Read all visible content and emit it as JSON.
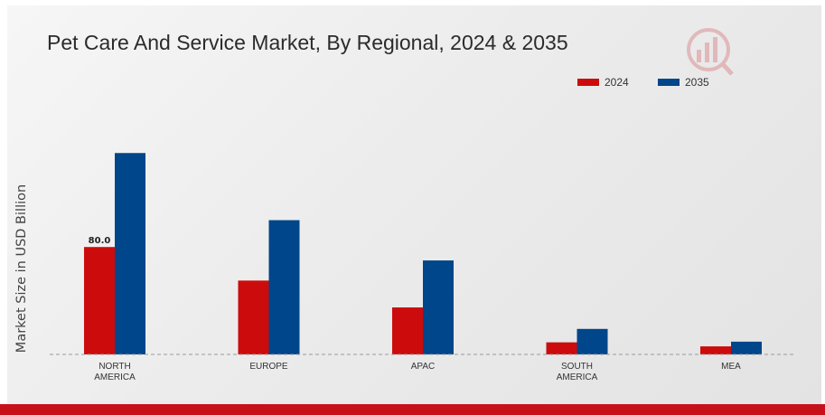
{
  "chart_data": {
    "type": "bar",
    "title": "Pet Care And Service Market, By Regional, 2024 & 2035",
    "xlabel": "",
    "ylabel": "Market Size in USD Billion",
    "categories": [
      "NORTH\nAMERICA",
      "EUROPE",
      "APAC",
      "SOUTH\nAMERICA",
      "MEA"
    ],
    "series": [
      {
        "name": "2024",
        "color": "#cc0c0c",
        "values": [
          80.0,
          55.0,
          35.0,
          9.0,
          6.0
        ]
      },
      {
        "name": "2035",
        "color": "#00468b",
        "values": [
          150.0,
          100.0,
          70.0,
          19.0,
          9.5
        ]
      }
    ],
    "data_labels": [
      {
        "series": 0,
        "index": 0,
        "text": "80.0"
      }
    ],
    "ylim": [
      0,
      200
    ],
    "grid": false,
    "legend_position": "top-right",
    "baseline_style": "dashed"
  }
}
